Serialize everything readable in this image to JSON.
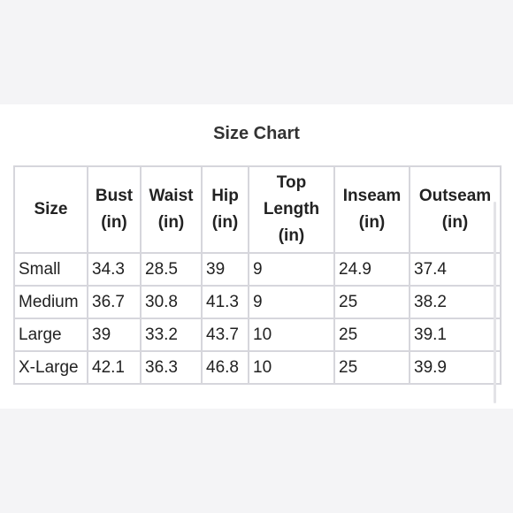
{
  "title": "Size Chart",
  "table": {
    "headers": [
      [
        "Size"
      ],
      [
        "Bust",
        "(in)"
      ],
      [
        "Waist",
        "(in)"
      ],
      [
        "Hip",
        "(in)"
      ],
      [
        "Top",
        "Length",
        "(in)"
      ],
      [
        "Inseam",
        "(in)"
      ],
      [
        "Outseam",
        "(in)"
      ]
    ],
    "rows": [
      [
        "Small",
        "34.3",
        "28.5",
        "39",
        "9",
        "24.9",
        "37.4"
      ],
      [
        "Medium",
        "36.7",
        "30.8",
        "41.3",
        "9",
        "25",
        "38.2"
      ],
      [
        "Large",
        "39",
        "33.2",
        "43.7",
        "10",
        "25",
        "39.1"
      ],
      [
        "X-Large",
        "42.1",
        "36.3",
        "46.8",
        "10",
        "25",
        "39.9"
      ]
    ]
  },
  "colors": {
    "border": "#d6d6dc",
    "background": "#f4f4f6",
    "card": "#ffffff"
  }
}
